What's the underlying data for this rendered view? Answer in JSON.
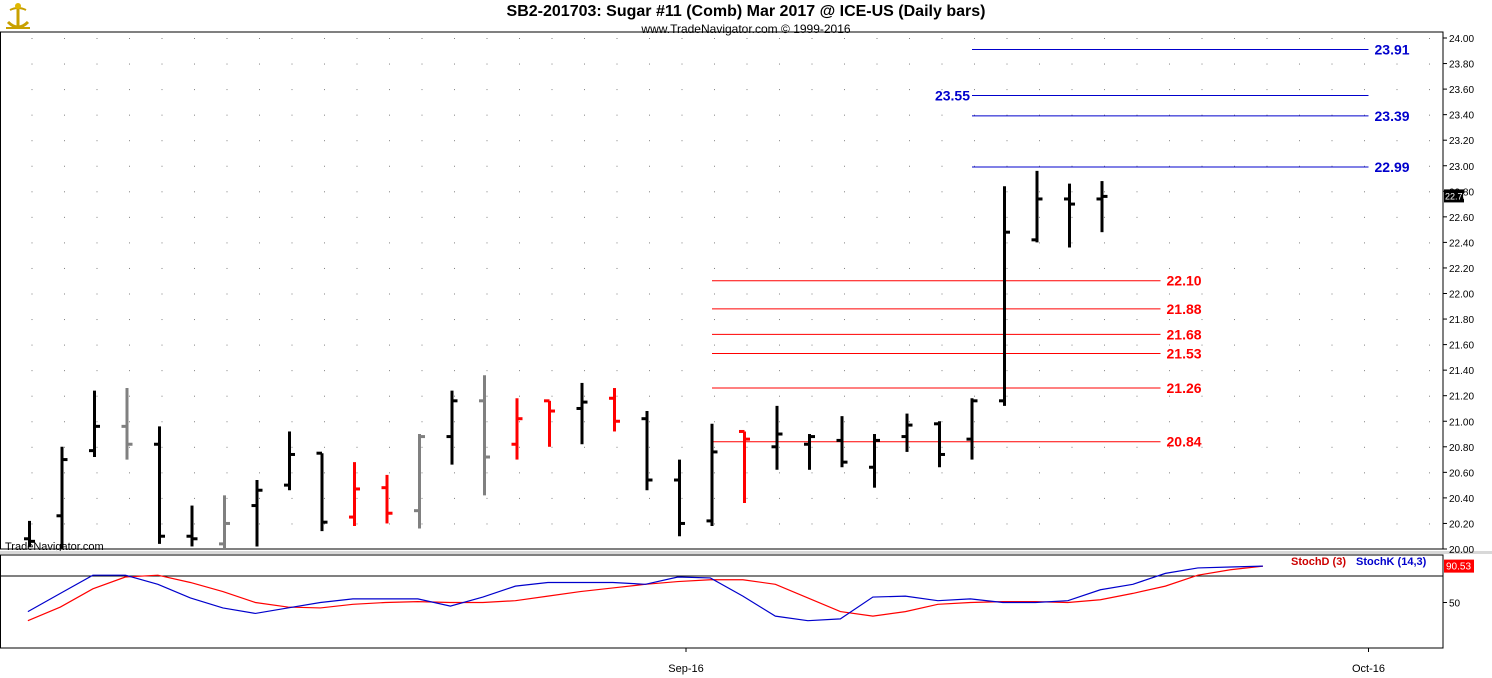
{
  "header": {
    "title": "SB2-201703:  Sugar #11 (Comb) Mar 2017 @ ICE-US  (Daily bars)",
    "copyright": "www.TradeNavigator.com © 1999-2016",
    "watermark": "TradeNavigator.com"
  },
  "colors": {
    "up_bar": "#000000",
    "down_bar": "#ff0000",
    "neutral_bar": "#808080",
    "resistance_lines": "#0000cc",
    "support_lines": "#cc0000",
    "stoch_k": "#0000cc",
    "stoch_d": "#cc0000",
    "last_price_badge": "#000000",
    "stoch_badge": "#ff0000"
  },
  "chart_data": [
    {
      "type": "ohlc",
      "title": "SB2-201703:  Sugar #11 (Comb) Mar 2017 @ ICE-US  (Daily bars)",
      "ylim": [
        20.0,
        24.0
      ],
      "y_ticks": [
        "20.00",
        "20.20",
        "20.40",
        "20.60",
        "20.80",
        "21.00",
        "21.20",
        "21.40",
        "21.60",
        "21.80",
        "22.00",
        "22.20",
        "22.40",
        "22.60",
        "22.80",
        "23.00",
        "23.20",
        "23.40",
        "23.60",
        "23.80",
        "24.00"
      ],
      "x_labels": [
        {
          "label": "Sep-16",
          "bar_index": 20.2
        },
        {
          "label": "Oct-16",
          "bar_index": 41.2
        }
      ],
      "last_price": "22.76",
      "bars": [
        {
          "o": 20.08,
          "h": 20.22,
          "l": 20.02,
          "c": 20.06,
          "color": "black"
        },
        {
          "o": 20.26,
          "h": 20.8,
          "l": 20.0,
          "c": 20.7,
          "color": "black"
        },
        {
          "o": 20.77,
          "h": 21.24,
          "l": 20.72,
          "c": 20.96,
          "color": "black"
        },
        {
          "o": 20.96,
          "h": 21.26,
          "l": 20.7,
          "c": 20.82,
          "color": "gray"
        },
        {
          "o": 20.82,
          "h": 20.96,
          "l": 20.04,
          "c": 20.1,
          "color": "black"
        },
        {
          "o": 20.1,
          "h": 20.34,
          "l": 20.02,
          "c": 20.08,
          "color": "black"
        },
        {
          "o": 20.04,
          "h": 20.42,
          "l": 20.0,
          "c": 20.2,
          "color": "gray"
        },
        {
          "o": 20.34,
          "h": 20.54,
          "l": 20.02,
          "c": 20.46,
          "color": "black"
        },
        {
          "o": 20.5,
          "h": 20.92,
          "l": 20.46,
          "c": 20.74,
          "color": "black"
        },
        {
          "o": 20.75,
          "h": 20.75,
          "l": 20.14,
          "c": 20.21,
          "color": "black"
        },
        {
          "o": 20.25,
          "h": 20.68,
          "l": 20.18,
          "c": 20.47,
          "color": "red"
        },
        {
          "o": 20.48,
          "h": 20.58,
          "l": 20.2,
          "c": 20.28,
          "color": "red"
        },
        {
          "o": 20.3,
          "h": 20.9,
          "l": 20.16,
          "c": 20.88,
          "color": "gray"
        },
        {
          "o": 20.88,
          "h": 21.24,
          "l": 20.66,
          "c": 21.16,
          "color": "black"
        },
        {
          "o": 21.16,
          "h": 21.36,
          "l": 20.42,
          "c": 20.72,
          "color": "gray"
        },
        {
          "o": 20.82,
          "h": 21.18,
          "l": 20.7,
          "c": 21.02,
          "color": "red"
        },
        {
          "o": 21.16,
          "h": 21.16,
          "l": 20.8,
          "c": 21.08,
          "color": "red"
        },
        {
          "o": 21.1,
          "h": 21.3,
          "l": 20.82,
          "c": 21.15,
          "color": "black"
        },
        {
          "o": 21.18,
          "h": 21.26,
          "l": 20.92,
          "c": 21.0,
          "color": "red"
        },
        {
          "o": 21.02,
          "h": 21.08,
          "l": 20.46,
          "c": 20.54,
          "color": "black"
        },
        {
          "o": 20.54,
          "h": 20.7,
          "l": 20.1,
          "c": 20.2,
          "color": "black"
        },
        {
          "o": 20.22,
          "h": 20.98,
          "l": 20.18,
          "c": 20.76,
          "color": "black"
        },
        {
          "o": 20.92,
          "h": 20.92,
          "l": 20.36,
          "c": 20.86,
          "color": "red"
        },
        {
          "o": 20.8,
          "h": 21.12,
          "l": 20.62,
          "c": 20.9,
          "color": "black"
        },
        {
          "o": 20.82,
          "h": 20.9,
          "l": 20.62,
          "c": 20.88,
          "color": "black"
        },
        {
          "o": 20.85,
          "h": 21.04,
          "l": 20.64,
          "c": 20.68,
          "color": "black"
        },
        {
          "o": 20.64,
          "h": 20.9,
          "l": 20.48,
          "c": 20.85,
          "color": "black"
        },
        {
          "o": 20.88,
          "h": 21.06,
          "l": 20.76,
          "c": 20.97,
          "color": "black"
        },
        {
          "o": 20.98,
          "h": 21.0,
          "l": 20.64,
          "c": 20.74,
          "color": "black"
        },
        {
          "o": 20.86,
          "h": 21.18,
          "l": 20.7,
          "c": 21.16,
          "color": "black"
        },
        {
          "o": 21.16,
          "h": 22.84,
          "l": 21.12,
          "c": 22.48,
          "color": "black"
        },
        {
          "o": 22.42,
          "h": 22.96,
          "l": 22.4,
          "c": 22.74,
          "color": "black"
        },
        {
          "o": 22.74,
          "h": 22.86,
          "l": 22.36,
          "c": 22.7,
          "color": "black"
        },
        {
          "o": 22.74,
          "h": 22.88,
          "l": 22.48,
          "c": 22.76,
          "color": "black"
        }
      ],
      "levels": [
        {
          "value": 23.91,
          "label": "23.91",
          "color": "blue",
          "x_start_bar": 29.0,
          "x_end_bar": 41.2,
          "label_side": "right"
        },
        {
          "value": 23.55,
          "label": "23.55",
          "color": "blue",
          "x_start_bar": 29.0,
          "x_end_bar": 41.2,
          "label_side": "left"
        },
        {
          "value": 23.39,
          "label": "23.39",
          "color": "blue",
          "x_start_bar": 29.0,
          "x_end_bar": 41.2,
          "label_side": "right"
        },
        {
          "value": 22.99,
          "label": "22.99",
          "color": "blue",
          "x_start_bar": 29.0,
          "x_end_bar": 41.2,
          "label_side": "right"
        },
        {
          "value": 22.1,
          "label": "22.10",
          "color": "red",
          "x_start_bar": 21.0,
          "x_end_bar": 34.8,
          "label_side": "right"
        },
        {
          "value": 21.88,
          "label": "21.88",
          "color": "red",
          "x_start_bar": 21.0,
          "x_end_bar": 34.8,
          "label_side": "right"
        },
        {
          "value": 21.68,
          "label": "21.68",
          "color": "red",
          "x_start_bar": 21.0,
          "x_end_bar": 34.8,
          "label_side": "right"
        },
        {
          "value": 21.53,
          "label": "21.53",
          "color": "red",
          "x_start_bar": 21.0,
          "x_end_bar": 34.8,
          "label_side": "right"
        },
        {
          "value": 21.26,
          "label": "21.26",
          "color": "red",
          "x_start_bar": 21.0,
          "x_end_bar": 34.8,
          "label_side": "right"
        },
        {
          "value": 20.84,
          "label": "20.84",
          "color": "red",
          "x_start_bar": 21.0,
          "x_end_bar": 34.8,
          "label_side": "right"
        }
      ]
    },
    {
      "type": "line",
      "title": "",
      "ylim": [
        0,
        100
      ],
      "y_ticks": [
        "50"
      ],
      "last_value": "90.53",
      "series": [
        {
          "name": "StochD (3)",
          "color": "red",
          "values": [
            30,
            45,
            65,
            78,
            80,
            72,
            62,
            50,
            45,
            44,
            48,
            50,
            51,
            50,
            50,
            52,
            57,
            62,
            66,
            70,
            73,
            75,
            75,
            70,
            55,
            40,
            35,
            40,
            48,
            50,
            51,
            51,
            50,
            53,
            60,
            68,
            80,
            86,
            90
          ]
        },
        {
          "name": "StochK (14,3)",
          "color": "blue",
          "values": [
            40,
            60,
            80,
            80,
            70,
            55,
            44,
            38,
            44,
            50,
            54,
            54,
            54,
            46,
            56,
            68,
            72,
            72,
            72,
            70,
            78,
            77,
            57,
            35,
            30,
            32,
            56,
            57,
            52,
            54,
            50,
            50,
            52,
            64,
            70,
            82,
            88,
            89,
            90
          ]
        }
      ]
    }
  ]
}
